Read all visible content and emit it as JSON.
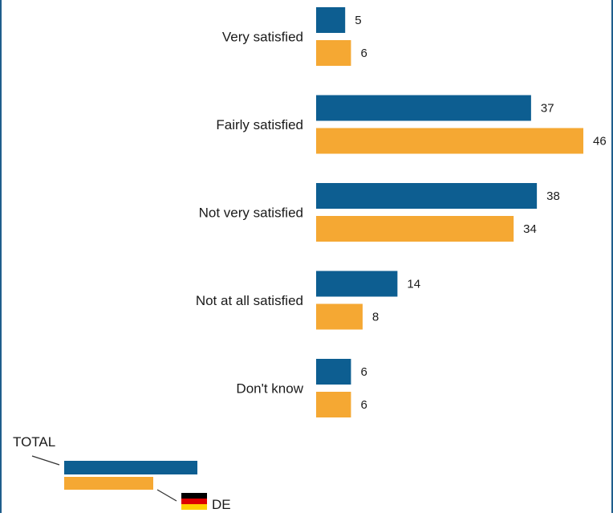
{
  "colors": {
    "total": "#0d5e91",
    "de": "#f5a833",
    "frame": "#1f5d8c",
    "text": "#1a1a1a"
  },
  "chart_data": {
    "type": "bar",
    "orientation": "horizontal",
    "categories": [
      "Very satisfied",
      "Fairly satisfied",
      "Not very satisfied",
      "Not at all satisfied",
      "Don't know"
    ],
    "series": [
      {
        "name": "TOTAL",
        "values": [
          5,
          37,
          38,
          14,
          6
        ]
      },
      {
        "name": "DE",
        "values": [
          6,
          46,
          34,
          8,
          6
        ]
      }
    ],
    "title": "",
    "xlabel": "",
    "ylabel": "",
    "grid": false,
    "legend": "bottom-left"
  },
  "legend": {
    "total_label": "TOTAL",
    "de_label": "DE",
    "de_flag": "germany-flag"
  }
}
